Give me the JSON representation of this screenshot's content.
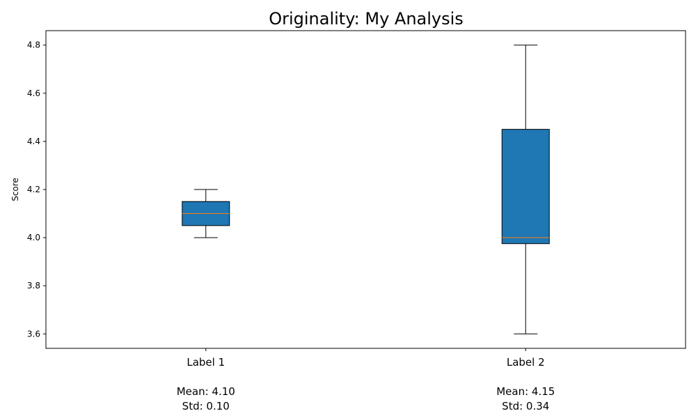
{
  "chart_data": {
    "type": "box",
    "title": "Originality: My Analysis",
    "ylabel": "Score",
    "xlabel": "",
    "ylim": [
      3.54,
      4.86
    ],
    "yticks": [
      3.6,
      3.8,
      4.0,
      4.2,
      4.4,
      4.6,
      4.8
    ],
    "grid": false,
    "box_color": "#1f77b4",
    "median_color": "#ff7f0e",
    "categories": [
      {
        "label": "Label 1",
        "stats": [
          "Mean: 4.10",
          "Std: 0.10"
        ],
        "whislo": 4.0,
        "q1": 4.05,
        "median": 4.1,
        "q3": 4.15,
        "whishi": 4.2
      },
      {
        "label": "Label 2",
        "stats": [
          "Mean: 4.15",
          "Std: 0.34"
        ],
        "whislo": 3.6,
        "q1": 3.975,
        "median": 4.0,
        "q3": 4.45,
        "whishi": 4.8
      }
    ]
  }
}
